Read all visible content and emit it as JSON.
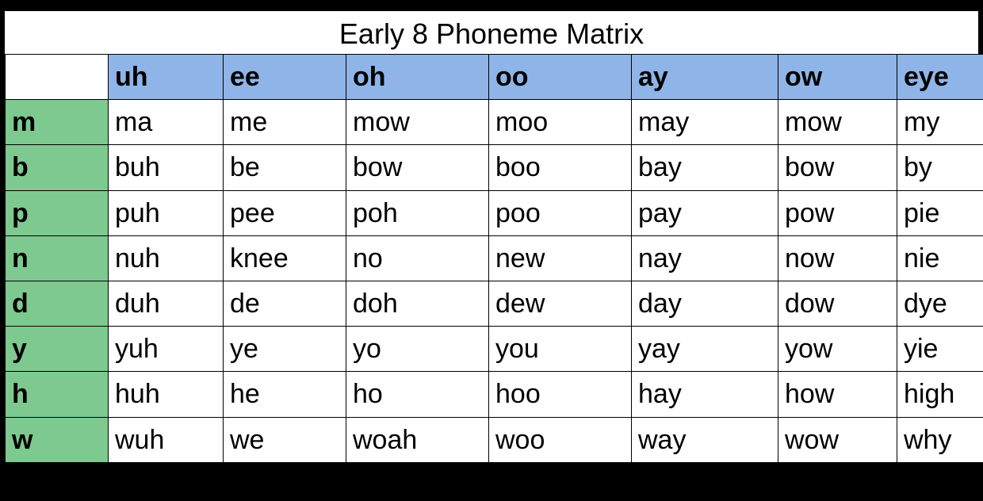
{
  "title": "Early 8 Phoneme Matrix",
  "colors": {
    "col_header_bg": "#8fb4e8",
    "row_header_bg": "#7ec98f",
    "cell_bg": "#ffffff",
    "border": "#000000",
    "text": "#000000"
  },
  "columns": [
    "uh",
    "ee",
    "oh",
    "oo",
    "ay",
    "ow",
    "eye"
  ],
  "rows": [
    {
      "head": "m",
      "cells": [
        "ma",
        "me",
        "mow",
        "moo",
        "may",
        "mow",
        "my"
      ]
    },
    {
      "head": "b",
      "cells": [
        "buh",
        "be",
        "bow",
        "boo",
        "bay",
        "bow",
        "by"
      ]
    },
    {
      "head": "p",
      "cells": [
        "puh",
        "pee",
        "poh",
        "poo",
        "pay",
        "pow",
        "pie"
      ]
    },
    {
      "head": "n",
      "cells": [
        "nuh",
        "knee",
        "no",
        "new",
        "nay",
        "now",
        "nie"
      ]
    },
    {
      "head": "d",
      "cells": [
        "duh",
        "de",
        "doh",
        "dew",
        "day",
        "dow",
        "dye"
      ]
    },
    {
      "head": "y",
      "cells": [
        "yuh",
        "ye",
        "yo",
        "you",
        "yay",
        "yow",
        "yie"
      ]
    },
    {
      "head": "h",
      "cells": [
        "huh",
        "he",
        "ho",
        "hoo",
        "hay",
        "how",
        "high"
      ]
    },
    {
      "head": "w",
      "cells": [
        "wuh",
        "we",
        "woah",
        "woo",
        "way",
        "wow",
        "why"
      ]
    }
  ]
}
